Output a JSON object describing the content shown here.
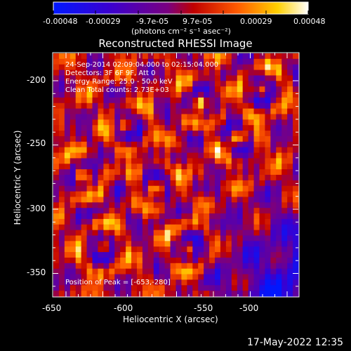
{
  "colorbar": {
    "ticks": [
      "-0.00048",
      "-0.00029",
      "-9.7e-05",
      "9.7e-05",
      "0.00029",
      "0.00048"
    ],
    "unit_label": "(photons cm⁻² s⁻¹ asec⁻²)"
  },
  "plot": {
    "title": "Reconstructed RHESSI Image",
    "xlabel": "Heliocentric X (arcsec)",
    "ylabel": "Heliocentric Y (arcsec)",
    "xticks": [
      "-650",
      "-600",
      "-550",
      "-500"
    ],
    "yticks": [
      "-200",
      "-250",
      "-300",
      "-350"
    ],
    "info": [
      "24-Sep-2014 02:09:04.000 to 02:15:04.000",
      "Detectors: 3F 6F 9F, Att 0",
      "Energy Range: 25.0 - 50.0 keV",
      "Clean     Total counts: 2.73E+03"
    ],
    "peak": "Position of Peak = [-653,-280]"
  },
  "footer": {
    "date": "17-May-2022 12:35"
  },
  "chart_data": {
    "type": "heatmap",
    "title": "Reconstructed RHESSI Image",
    "xlabel": "Heliocentric X (arcsec)",
    "ylabel": "Heliocentric Y (arcsec)",
    "xlim": [
      -665,
      -470
    ],
    "ylim": [
      -370,
      -182
    ],
    "colorbar_range": [
      -0.00048,
      0.00048
    ],
    "colormap": "blue-purple-red-yellow-white",
    "peak_position": [
      -653,
      -280
    ]
  }
}
